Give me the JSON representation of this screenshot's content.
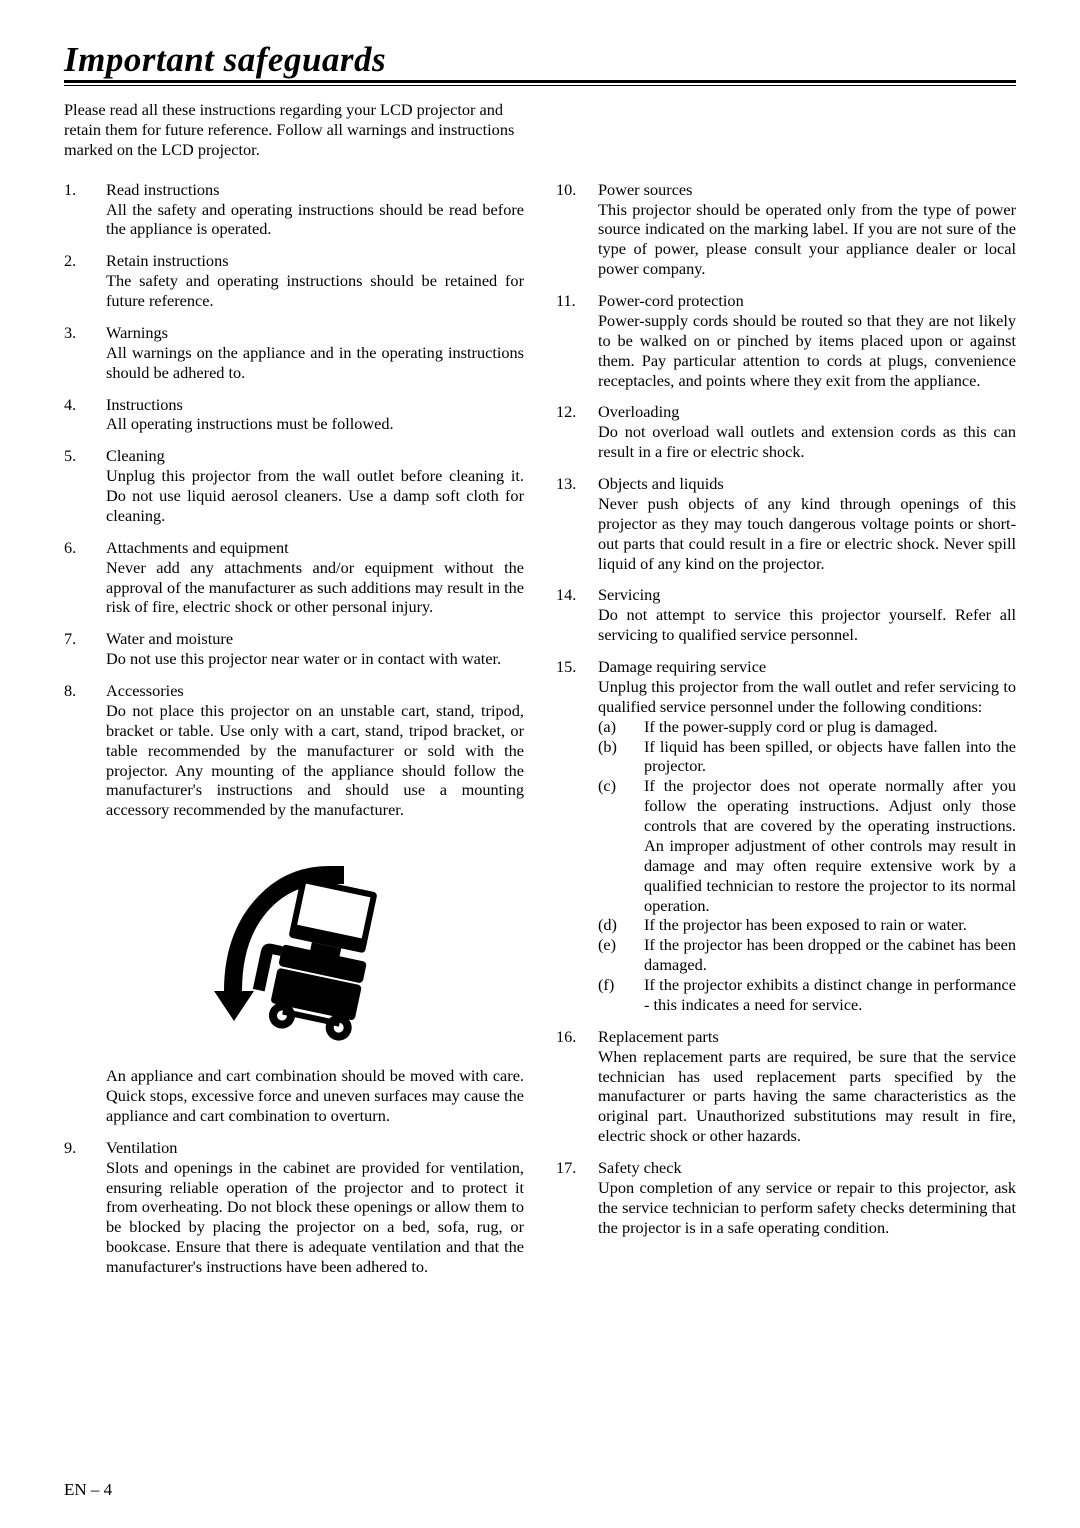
{
  "title": "Important safeguards",
  "intro": "Please read all these instructions regarding your LCD projector and retain them for future reference. Follow all warnings and instructions marked on the LCD projector.",
  "pageNumber": "EN – 4",
  "left": [
    {
      "n": "1.",
      "t": "Read instructions",
      "b": "All the safety and operating instructions should be read before the appliance is operated."
    },
    {
      "n": "2.",
      "t": "Retain instructions",
      "b": "The safety and operating instructions should be retained for future reference."
    },
    {
      "n": "3.",
      "t": "Warnings",
      "b": "All warnings on the appliance and in the operating instructions should be adhered to."
    },
    {
      "n": "4.",
      "t": "Instructions",
      "b": "All operating instructions must be followed."
    },
    {
      "n": "5.",
      "t": "Cleaning",
      "b": "Unplug this projector from the wall outlet before cleaning it. Do not use liquid aerosol cleaners. Use a damp soft cloth for cleaning."
    },
    {
      "n": "6.",
      "t": "Attachments and equipment",
      "b": "Never add any attachments and/or equipment without the approval of the manufacturer as such additions may result in the risk of fire, electric shock or other personal injury."
    },
    {
      "n": "7.",
      "t": "Water and moisture",
      "b": "Do not use this projector near water or in contact with water."
    },
    {
      "n": "8.",
      "t": "Accessories",
      "b": "Do not place this projector on an unstable cart, stand, tripod, bracket or table. Use only with a cart, stand, tripod bracket, or table recommended by the manufacturer or sold with the projector. Any mounting of the appliance should follow the manufacturer's instructions and should use a mounting accessory recommended by the manufacturer."
    }
  ],
  "cartCaption": "An appliance and cart combination should be moved with care. Quick stops, excessive force and uneven surfaces may cause the appliance and cart combination to overturn.",
  "left2": [
    {
      "n": "9.",
      "t": "Ventilation",
      "b": "Slots and openings in the cabinet are provided for ventilation, ensuring reliable operation of the projector and to protect it from overheating. Do not block these openings or allow them to be blocked by placing the projector on a bed, sofa, rug, or bookcase. Ensure that there is adequate ventilation and that the manufacturer's instructions have been adhered to."
    }
  ],
  "right": [
    {
      "n": "10.",
      "t": "Power sources",
      "b": "This projector should be operated only from the type of power source indicated on the marking label. If you are not sure of the type of power, please consult your appliance dealer or local power company."
    },
    {
      "n": "11.",
      "t": "Power-cord protection",
      "b": "Power-supply cords should be routed so that they are not likely to be walked on or pinched by items placed upon or against them. Pay particular attention to cords at plugs, convenience receptacles, and points where they exit from the appliance."
    },
    {
      "n": "12.",
      "t": "Overloading",
      "b": "Do not overload wall outlets and extension cords as this can result in a fire or electric shock."
    },
    {
      "n": "13.",
      "t": "Objects and liquids",
      "b": "Never push objects of any kind through openings of this projector as they may touch dangerous voltage points or short-out parts that could result in a fire or electric shock. Never spill liquid of any kind on the projector."
    },
    {
      "n": "14.",
      "t": "Servicing",
      "b": "Do not attempt to service this projector yourself. Refer all servicing to qualified service personnel."
    }
  ],
  "item15": {
    "n": "15.",
    "t": "Damage requiring service",
    "b": "Unplug this projector from the wall outlet and refer servicing to qualified service personnel under the following conditions:",
    "subs": [
      {
        "l": "(a)",
        "b": "If the power-supply cord or plug is damaged."
      },
      {
        "l": "(b)",
        "b": "If liquid has been spilled, or objects have fallen into the projector."
      },
      {
        "l": "(c)",
        "b": "If the projector does not operate normally after you follow the operating instructions. Adjust only those controls that are covered by the operating instructions. An improper adjustment of other controls may result in damage and may often require extensive work by a qualified technician to restore the projector to its normal operation."
      },
      {
        "l": "(d)",
        "b": "If the projector has been exposed to rain or water."
      },
      {
        "l": "(e)",
        "b": "If the projector has been dropped or the cabinet has been damaged."
      },
      {
        "l": "(f)",
        "b": "If the projector exhibits a distinct change in performance - this indicates a need for service."
      }
    ]
  },
  "right2": [
    {
      "n": "16.",
      "t": "Replacement parts",
      "b": "When replacement parts are required, be sure that the service technician has used replacement parts specified by the manufacturer or parts having the same characteristics as the original part. Unauthorized substitutions may result in fire, electric shock or other hazards."
    },
    {
      "n": "17.",
      "t": "Safety check",
      "b": "Upon completion of any service or repair to this projector, ask the service technician to perform safety checks determining that the projector is in a safe operating condition."
    }
  ]
}
